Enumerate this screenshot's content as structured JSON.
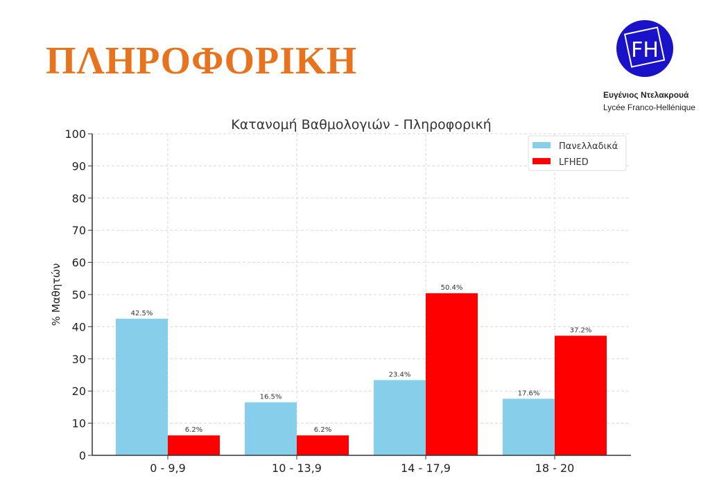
{
  "slide_title": "ΠΛΗΡΟΦΟΡΙΚΗ",
  "logo": {
    "text": "FH",
    "name": "Ευγένιος Ντελακρουά",
    "subtitle": "Lycée Franco-Hellénique",
    "color": "#1a12c8"
  },
  "chart_data": {
    "type": "bar",
    "title": "Κατανομή Βαθμολογιών - Πληροφορική",
    "xlabel": "",
    "ylabel": "% Μαθητών",
    "ylim": [
      0,
      100
    ],
    "yticks": [
      0,
      10,
      20,
      30,
      40,
      50,
      60,
      70,
      80,
      90,
      100
    ],
    "categories": [
      "0 - 9,9",
      "10 - 13,9",
      "14 - 17,9",
      "18 - 20"
    ],
    "series": [
      {
        "name": "Πανελλαδικά",
        "color": "#87ceeb",
        "values": [
          42.5,
          16.5,
          23.4,
          17.6
        ],
        "labels": [
          "42.5%",
          "16.5%",
          "23.4%",
          "17.6%"
        ]
      },
      {
        "name": "LFHED",
        "color": "#ff0000",
        "values": [
          6.2,
          6.2,
          50.4,
          37.2
        ],
        "labels": [
          "6.2%",
          "6.2%",
          "50.4%",
          "37.2%"
        ]
      }
    ],
    "grid": true,
    "legend": "top-right"
  }
}
